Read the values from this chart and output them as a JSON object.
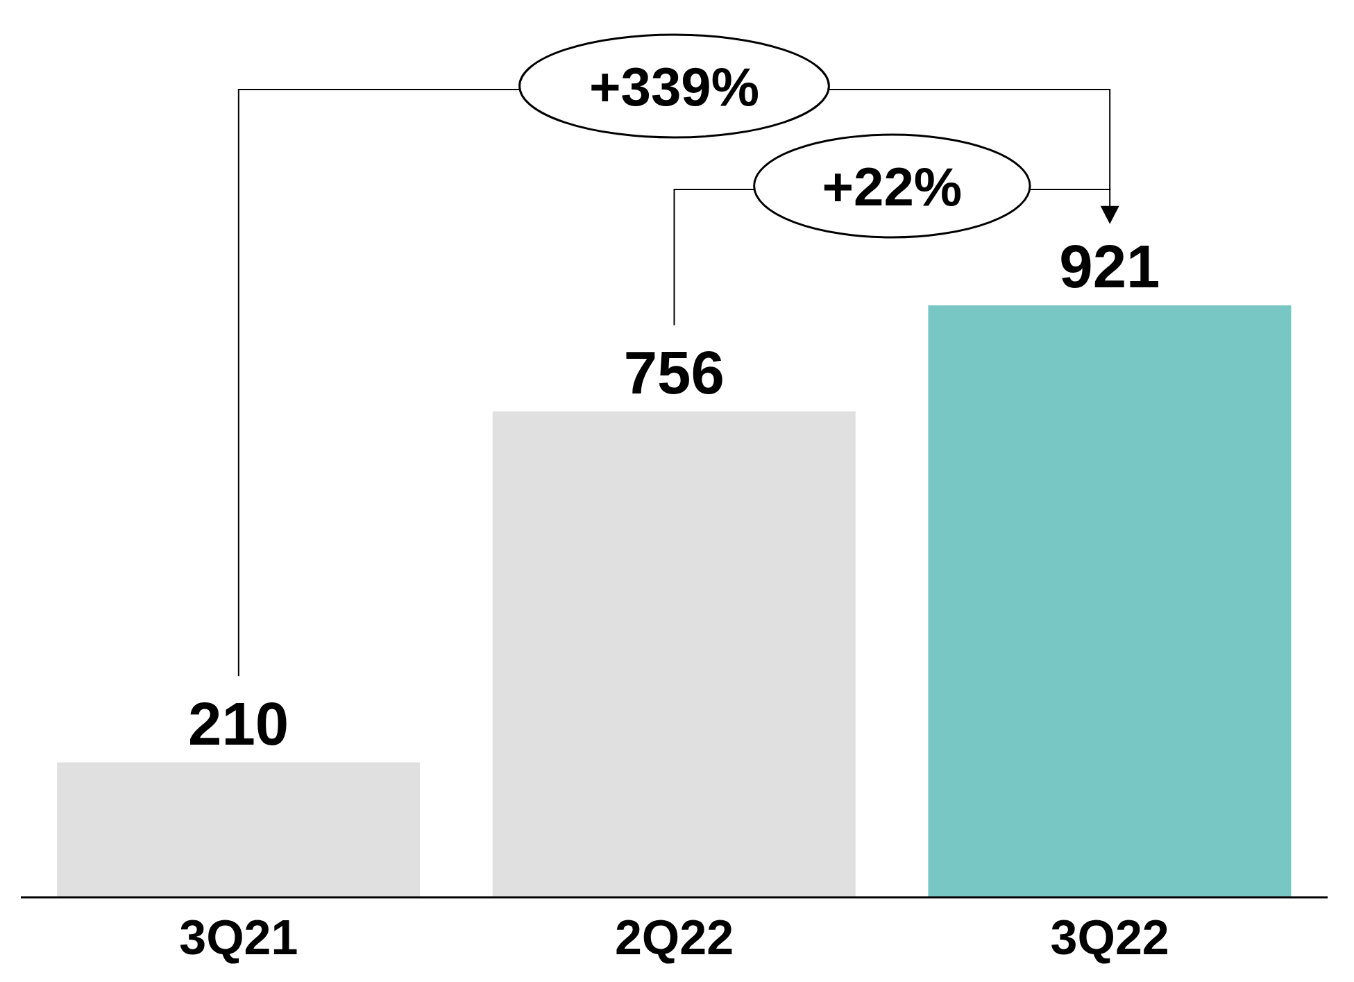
{
  "chart_data": {
    "type": "bar",
    "categories": [
      "3Q21",
      "2Q22",
      "3Q22"
    ],
    "values": [
      210,
      756,
      921
    ],
    "colors": [
      "#e0e0e0",
      "#e0e0e0",
      "#79c7c5"
    ],
    "data_labels": true,
    "tick_labels": "x",
    "annotations": [
      "+339%",
      "+22%"
    ]
  }
}
